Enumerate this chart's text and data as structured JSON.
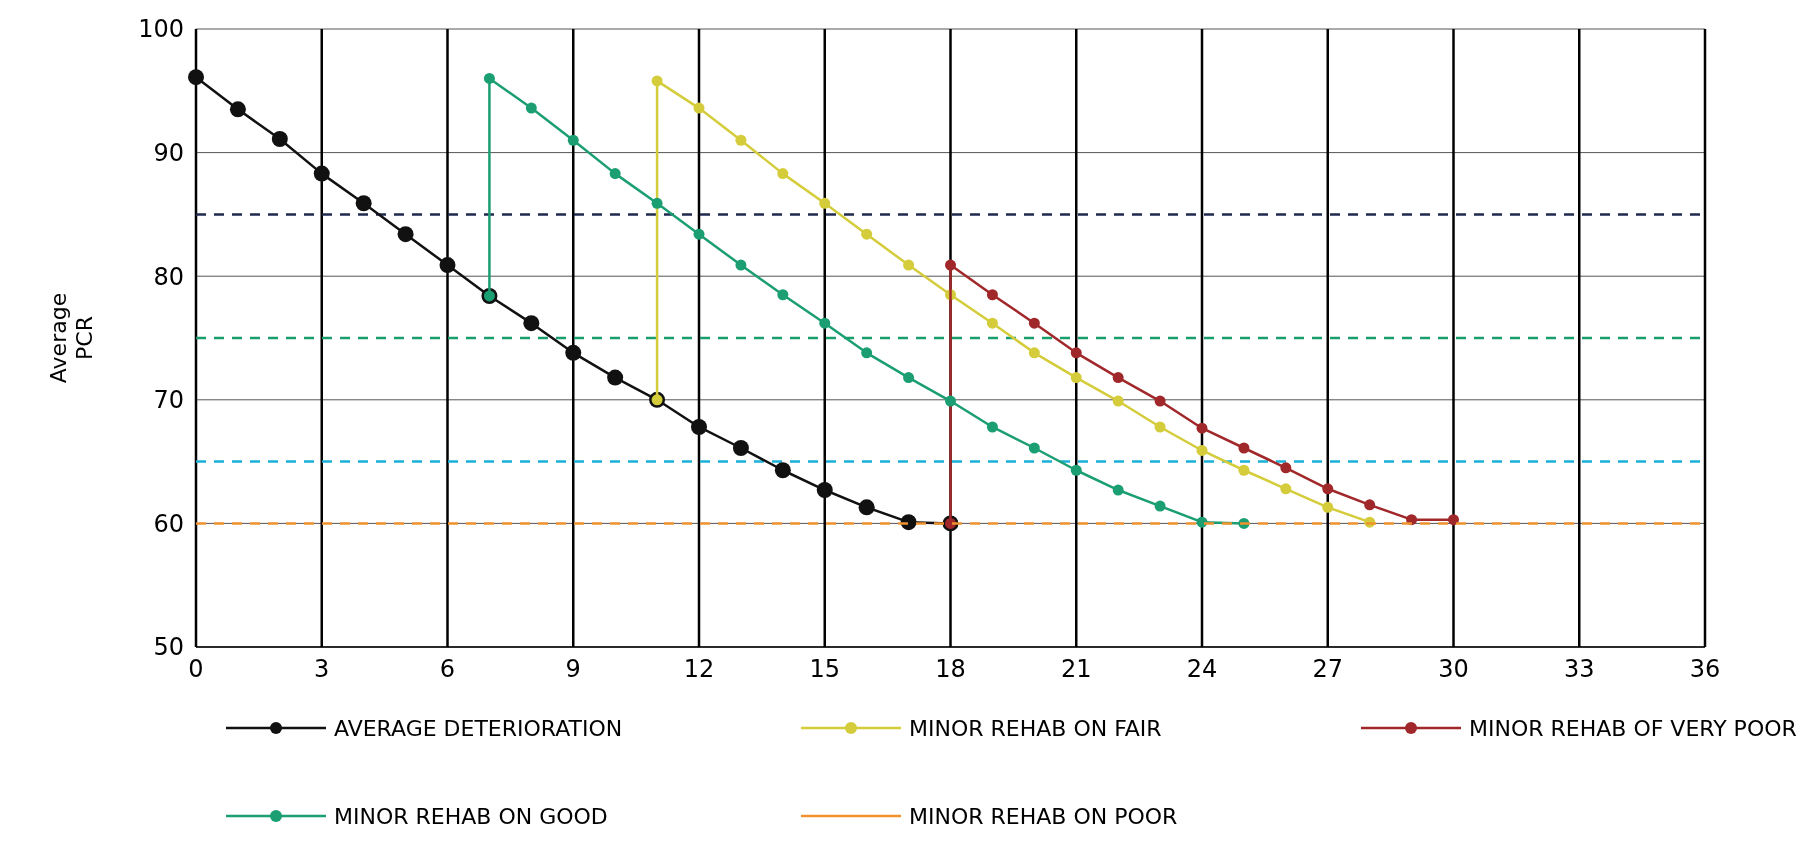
{
  "chart_data": {
    "type": "line",
    "ylabel": "Average PCR",
    "xlim": [
      0,
      36
    ],
    "xticks": [
      0,
      3,
      6,
      9,
      12,
      15,
      18,
      21,
      24,
      27,
      30,
      33,
      36
    ],
    "ylim": [
      50,
      100
    ],
    "yticks": [
      50,
      60,
      70,
      80,
      90,
      100
    ],
    "grid": true,
    "legend": "bottom",
    "marker": "circle",
    "line_style": "solid",
    "series": [
      {
        "name": "AVERAGE DETERIORATION",
        "color": "#111111",
        "x": [
          0,
          1,
          2,
          3,
          4,
          5,
          6,
          7,
          8,
          9,
          10,
          11,
          12,
          13,
          14,
          15,
          16,
          17,
          18
        ],
        "values": [
          96.1,
          93.5,
          91.1,
          88.3,
          85.9,
          83.4,
          80.9,
          78.4,
          76.2,
          73.8,
          71.8,
          70.0,
          67.8,
          66.1,
          64.3,
          62.7,
          61.3,
          60.1,
          60.0
        ]
      },
      {
        "name": "MINOR REHAB ON FAIR",
        "color": "#d4cc3a",
        "x": [
          11,
          11,
          12,
          13,
          14,
          15,
          16,
          17,
          18,
          19,
          20,
          21,
          22,
          23,
          24,
          25,
          26,
          27,
          28
        ],
        "values": [
          70.0,
          95.8,
          93.6,
          91.0,
          88.3,
          85.9,
          83.4,
          80.9,
          78.5,
          76.2,
          73.8,
          71.8,
          69.9,
          67.8,
          65.9,
          64.3,
          62.8,
          61.3,
          60.1
        ]
      },
      {
        "name": "MINOR REHAB OF VERY POOR",
        "color": "#a0282a",
        "x": [
          18,
          18,
          19,
          20,
          21,
          22,
          23,
          24,
          25,
          26,
          27,
          28,
          29,
          30
        ],
        "values": [
          60.0,
          80.9,
          78.5,
          76.2,
          73.8,
          71.8,
          69.9,
          67.7,
          66.1,
          64.5,
          62.8,
          61.5,
          60.3,
          60.3
        ]
      },
      {
        "name": "MINOR REHAB ON GOOD",
        "color": "#1a9e72",
        "x": [
          7,
          7,
          8,
          9,
          10,
          11,
          12,
          13,
          14,
          15,
          16,
          17,
          18,
          19,
          20,
          21,
          22,
          23,
          24,
          25
        ],
        "values": [
          78.4,
          96.0,
          93.6,
          91.0,
          88.3,
          85.9,
          83.4,
          80.9,
          78.5,
          76.2,
          73.8,
          71.8,
          69.9,
          67.8,
          66.1,
          64.3,
          62.7,
          61.4,
          60.1,
          60.0
        ]
      },
      {
        "name": "MINOR REHAB ON POOR",
        "color": "#f0922e",
        "x": [
          0,
          36
        ],
        "values": [
          60,
          60
        ],
        "line_style": "dashed",
        "marker": "none"
      }
    ],
    "ref_lines": [
      {
        "axis": "y",
        "value": 85,
        "color": "#1f2a4f",
        "line_style": "dashed"
      },
      {
        "axis": "y",
        "value": 75,
        "color": "#1a9e6e",
        "line_style": "dashed"
      },
      {
        "axis": "y",
        "value": 65,
        "color": "#1ab0d8",
        "line_style": "dashed"
      }
    ]
  }
}
